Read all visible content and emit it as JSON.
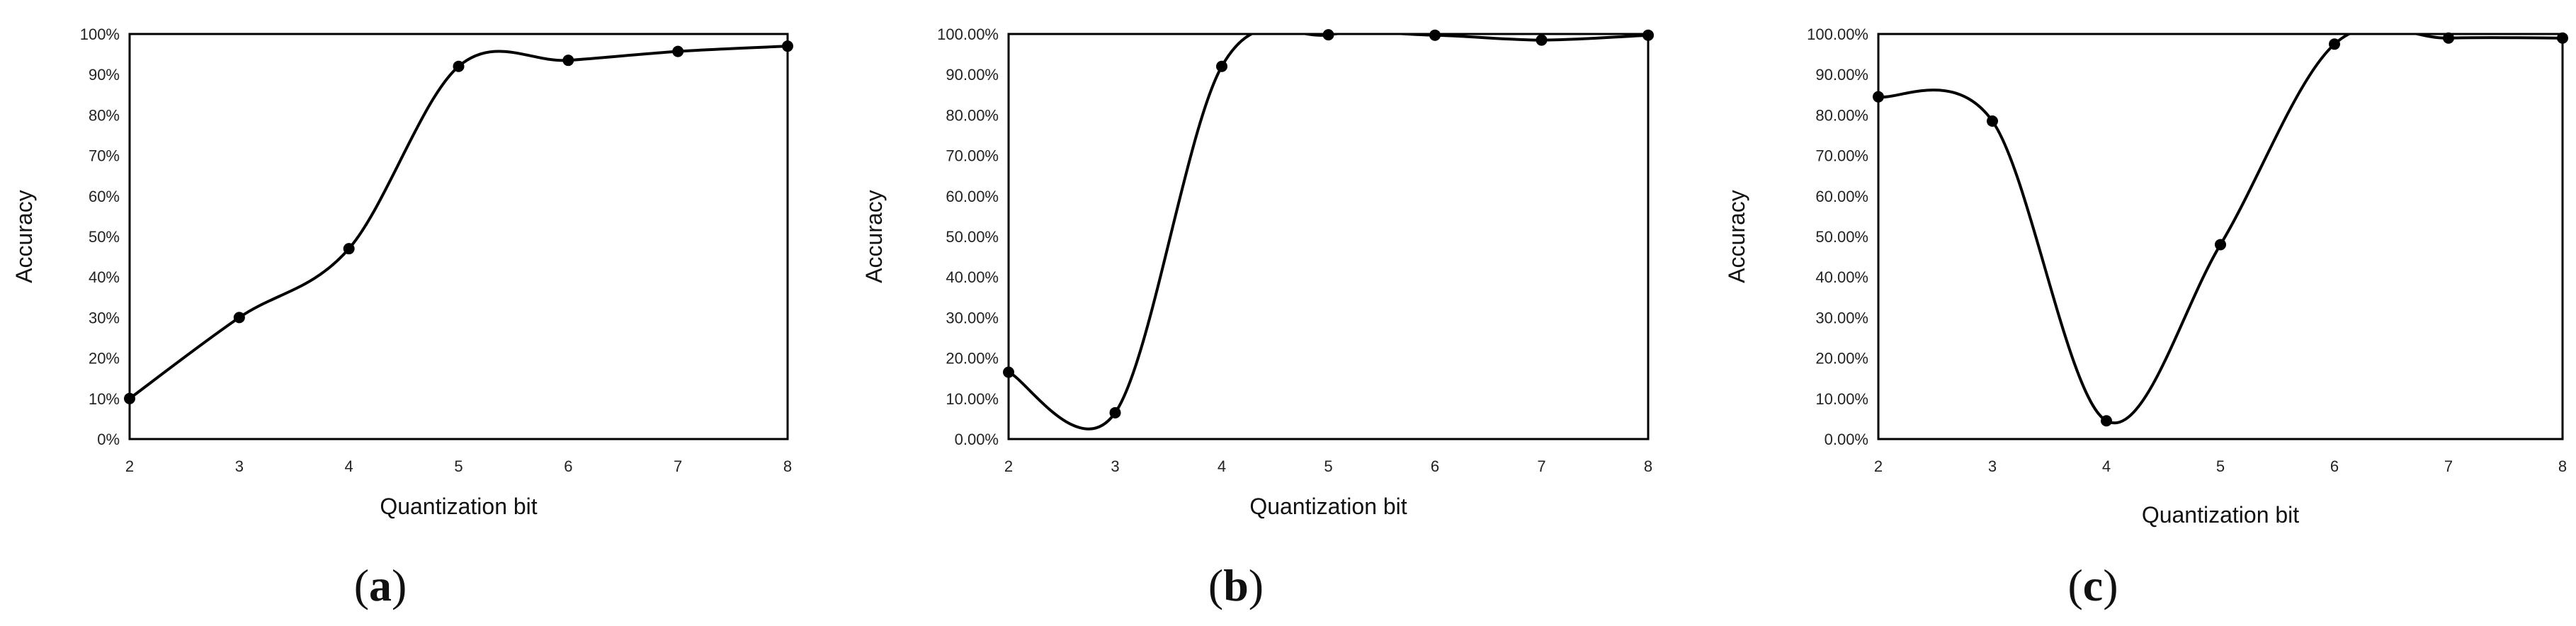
{
  "chart_data": [
    {
      "type": "line",
      "caption_letter": "a",
      "xlabel": "Quantization bit",
      "ylabel": "Accuracy",
      "x": [
        2,
        3,
        4,
        5,
        6,
        7,
        8
      ],
      "series": [
        {
          "values": [
            0.1,
            0.3,
            0.47,
            0.92,
            0.935,
            0.957,
            0.97
          ]
        }
      ],
      "xlim": [
        2,
        8
      ],
      "ylim": [
        0,
        1
      ],
      "y_ticks": [
        0,
        0.1,
        0.2,
        0.3,
        0.4,
        0.5,
        0.6,
        0.7,
        0.8,
        0.9,
        1.0
      ],
      "y_tick_labels": [
        "0%",
        "10%",
        "20%",
        "30%",
        "40%",
        "50%",
        "60%",
        "70%",
        "80%",
        "90%",
        "100%"
      ],
      "x_tick_labels": [
        "2",
        "3",
        "4",
        "5",
        "6",
        "7",
        "8"
      ],
      "grid": false,
      "markers": true,
      "smooth": true
    },
    {
      "type": "line",
      "caption_letter": "b",
      "xlabel": "Quantization bit",
      "ylabel": "Accuracy",
      "x": [
        2,
        3,
        4,
        5,
        6,
        7,
        8
      ],
      "series": [
        {
          "values": [
            0.165,
            0.065,
            0.92,
            0.998,
            0.997,
            0.985,
            0.997
          ]
        }
      ],
      "xlim": [
        2,
        8
      ],
      "ylim": [
        0,
        1
      ],
      "y_ticks": [
        0,
        0.1,
        0.2,
        0.3,
        0.4,
        0.5,
        0.6,
        0.7,
        0.8,
        0.9,
        1.0
      ],
      "y_tick_labels": [
        "0.00%",
        "10.00%",
        "20.00%",
        "30.00%",
        "40.00%",
        "50.00%",
        "60.00%",
        "70.00%",
        "80.00%",
        "90.00%",
        "100.00%"
      ],
      "x_tick_labels": [
        "2",
        "3",
        "4",
        "5",
        "6",
        "7",
        "8"
      ],
      "grid": false,
      "markers": true,
      "smooth": true
    },
    {
      "type": "line",
      "caption_letter": "c",
      "xlabel": "Quantization bit",
      "ylabel": "Accuracy",
      "x": [
        2,
        3,
        4,
        5,
        6,
        7,
        8
      ],
      "series": [
        {
          "values": [
            0.845,
            0.785,
            0.045,
            0.48,
            0.975,
            0.99,
            0.99
          ]
        }
      ],
      "xlim": [
        2,
        8
      ],
      "ylim": [
        0,
        1
      ],
      "y_ticks": [
        0,
        0.1,
        0.2,
        0.3,
        0.4,
        0.5,
        0.6,
        0.7,
        0.8,
        0.9,
        1.0
      ],
      "y_tick_labels": [
        "0.00%",
        "10.00%",
        "20.00%",
        "30.00%",
        "40.00%",
        "50.00%",
        "60.00%",
        "70.00%",
        "80.00%",
        "90.00%",
        "100.00%"
      ],
      "x_tick_labels": [
        "2",
        "3",
        "4",
        "5",
        "6",
        "7",
        "8"
      ],
      "grid": false,
      "markers": true,
      "smooth": true
    }
  ],
  "colors": {
    "line": "#000000",
    "marker": "#000000",
    "axis": "#000000",
    "text": "#222222"
  }
}
